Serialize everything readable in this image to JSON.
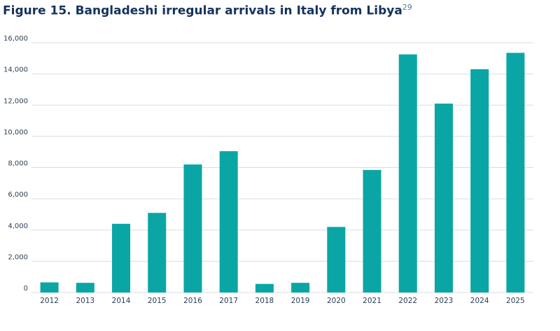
{
  "title": {
    "text": "Figure 15. Bangladeshi irregular arrivals in Italy from Libya",
    "footnote": "29"
  },
  "colors": {
    "bar": "#0aa6a6",
    "title": "#14325c",
    "grid": "#d9dde2",
    "axis_text": "#2b3f55"
  },
  "chart_data": {
    "type": "bar",
    "title": "Figure 15. Bangladeshi irregular arrivals in Italy from Libya",
    "xlabel": "",
    "ylabel": "",
    "ylim": [
      0,
      16000
    ],
    "yticks": [
      0,
      2000,
      4000,
      6000,
      8000,
      10000,
      12000,
      14000,
      16000
    ],
    "ytick_labels": [
      "0",
      "2,000",
      "4,000",
      "6,000",
      "8,000",
      "10,000",
      "12,000",
      "14,000",
      "16,000"
    ],
    "grid": true,
    "legend": "none",
    "categories": [
      "2012",
      "2013",
      "2014",
      "2015",
      "2016",
      "2017",
      "2018",
      "2019",
      "2020",
      "2021",
      "2022",
      "2023",
      "2024",
      "2025"
    ],
    "values": [
      650,
      620,
      4400,
      5100,
      8200,
      9050,
      550,
      620,
      4200,
      7850,
      15250,
      12100,
      14300,
      15350
    ]
  }
}
